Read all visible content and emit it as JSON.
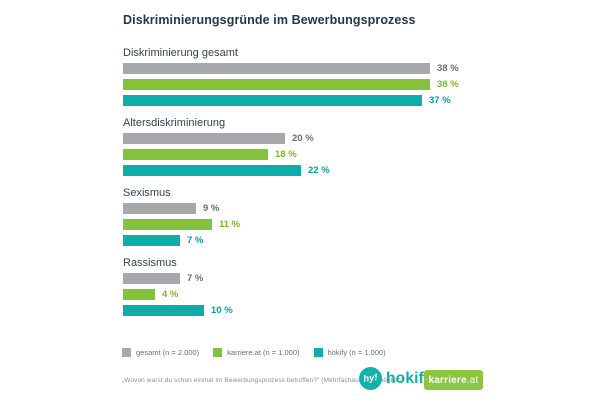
{
  "title": "Diskriminierungsgründe im Bewerbungsprozess",
  "chart_data": {
    "type": "bar",
    "orientation": "horizontal",
    "unit": "%",
    "xlim": [
      0,
      40
    ],
    "grid": false,
    "legend_position": "bottom",
    "categories": [
      "Diskriminierung gesamt",
      "Altersdiskriminierung",
      "Sexismus",
      "Rassismus"
    ],
    "series": [
      {
        "name": "gesamt (n = 2.000)",
        "color": "#a6a8ab",
        "value_color": "#6d6e71",
        "values": [
          38,
          20,
          9,
          7
        ]
      },
      {
        "name": "karriere.at (n = 1.000)",
        "color": "#84c23c",
        "value_color": "#7cb928",
        "values": [
          38,
          18,
          11,
          4
        ]
      },
      {
        "name": "hokify (n = 1.000)",
        "color": "#0fada9",
        "value_color": "#00a39e",
        "values": [
          37,
          22,
          7,
          10
        ]
      }
    ]
  },
  "footer": {
    "source_note": "„Wovon warst du schon einmal im Bewerbungsprozess betroffen?“ (Mehrfachauswahl möglich)"
  },
  "logos": {
    "hokify": {
      "icon_text": "hy!",
      "label": "hokify"
    },
    "karriereat": {
      "label_main": "karriere",
      "label_suffix": ".at"
    }
  }
}
